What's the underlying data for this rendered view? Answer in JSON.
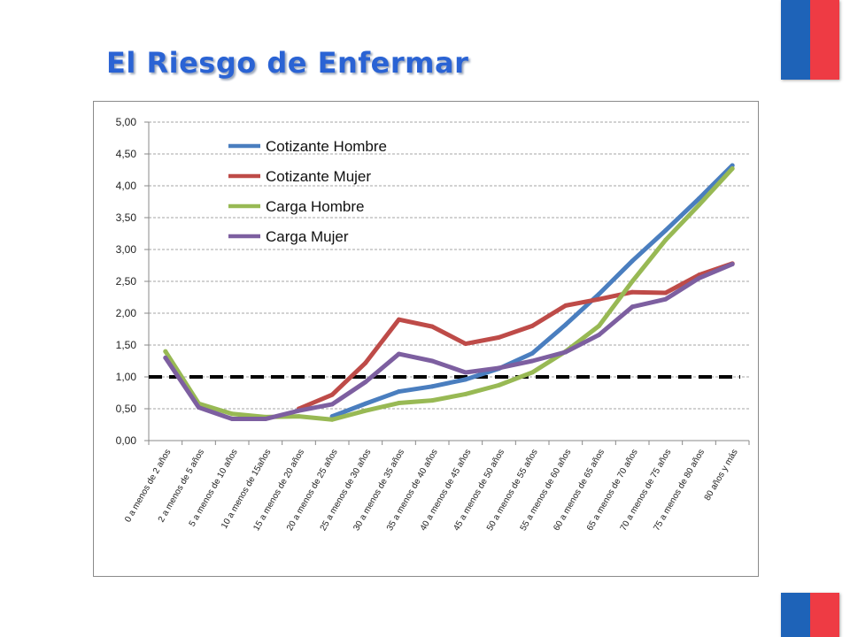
{
  "slide": {
    "title": "El Riesgo de Enfermar"
  },
  "colors": {
    "title": "#2a63d4",
    "flag_blue": "#1e63b8",
    "flag_red": "#ee3b44"
  },
  "chart_data": {
    "type": "line",
    "title": "",
    "xlabel": "",
    "ylabel": "",
    "ylim": [
      0,
      5
    ],
    "y_ticks": [
      "0,00",
      "0,50",
      "1,00",
      "1,50",
      "2,00",
      "2,50",
      "3,00",
      "3,50",
      "4,00",
      "4,50",
      "5,00"
    ],
    "grid": "horizontal dashed",
    "legend_position": "top-left",
    "reference_line": {
      "y": 1.0,
      "style": "dashed",
      "color": "#000000"
    },
    "categories": [
      "0 a menos de 2 años",
      "2 a menos de 5 años",
      "5 a menos de 10 años",
      "10 a menos de 15años",
      "15 a menos de 20 años",
      "20 a menos de 25 años",
      "25 a menos de 30 años",
      "30 a menos de 35 años",
      "35 a menos de 40 años",
      "40 a menos de 45 años",
      "45 a menos de 50 años",
      "50 a menos de 55 años",
      "55 a menos de 60 años",
      "60 a menos de 65 años",
      "65 a menos de 70 años",
      "70 a menos de 75 años",
      "75 a menos de 80 años",
      "80 años y más"
    ],
    "series": [
      {
        "name": "Cotizante Hombre",
        "color": "#4a7ebf",
        "values": [
          null,
          null,
          null,
          null,
          null,
          0.38,
          0.58,
          0.77,
          0.85,
          0.96,
          1.13,
          1.37,
          1.82,
          2.3,
          2.82,
          3.3,
          3.8,
          4.32
        ]
      },
      {
        "name": "Cotizante Mujer",
        "color": "#be4b48",
        "values": [
          null,
          null,
          null,
          null,
          0.5,
          0.72,
          1.22,
          1.9,
          1.79,
          1.52,
          1.62,
          1.8,
          2.12,
          2.22,
          2.33,
          2.32,
          2.6,
          2.78
        ]
      },
      {
        "name": "Carga Hombre",
        "color": "#98b954",
        "values": [
          1.4,
          0.58,
          0.42,
          0.37,
          0.38,
          0.33,
          0.47,
          0.59,
          0.63,
          0.73,
          0.87,
          1.07,
          1.4,
          1.8,
          2.5,
          3.15,
          3.7,
          4.27
        ]
      },
      {
        "name": "Carga Mujer",
        "color": "#7d5fa0",
        "values": [
          1.3,
          0.52,
          0.34,
          0.34,
          0.47,
          0.57,
          0.92,
          1.36,
          1.25,
          1.07,
          1.14,
          1.25,
          1.39,
          1.66,
          2.1,
          2.22,
          2.55,
          2.77
        ]
      }
    ]
  }
}
